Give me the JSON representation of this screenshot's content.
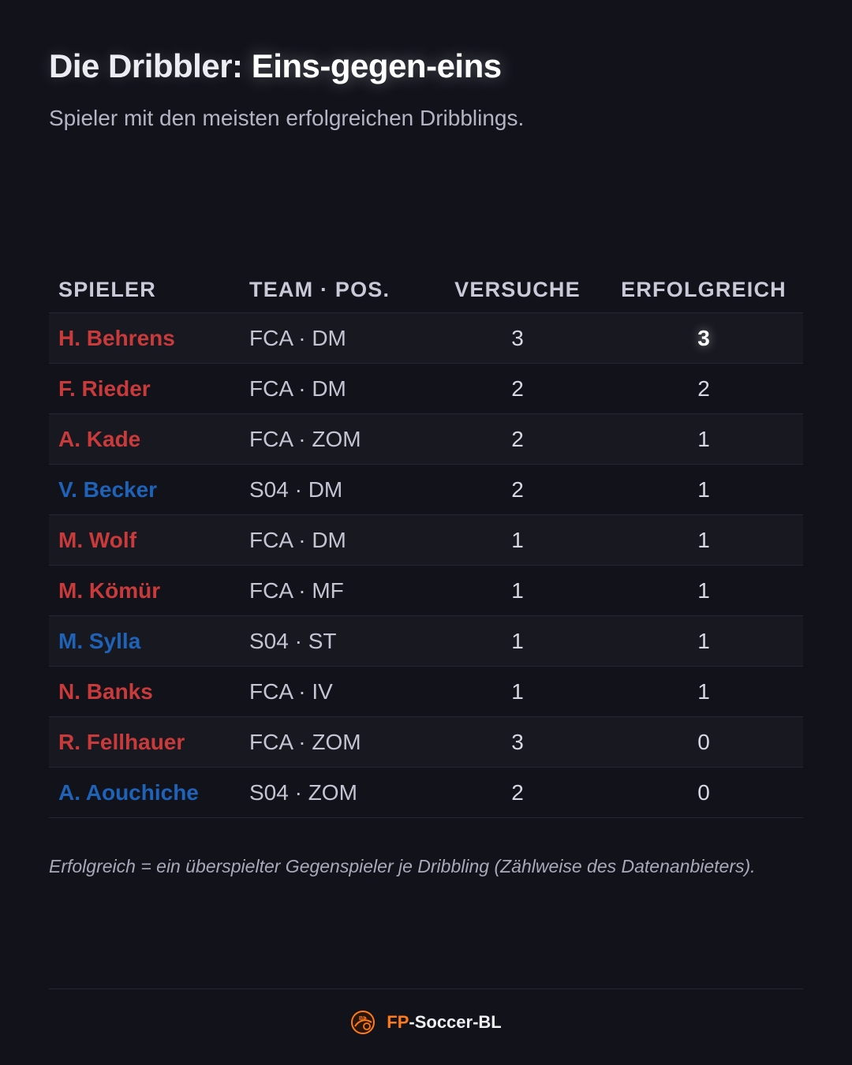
{
  "header": {
    "title_prefix": "Die Dribbler: ",
    "title_highlight": "Eins-gegen-eins",
    "subtitle": "Spieler mit den meisten erfolgreichen Dribblings."
  },
  "table": {
    "columns": [
      "SPIELER",
      "TEAM · POS.",
      "VERSUCHE",
      "ERFOLGREICH"
    ],
    "rows": [
      {
        "name": "H. Behrens",
        "team_pos": "FCA · DM",
        "versuche": "3",
        "erfolgreich": "3",
        "team": "FCA"
      },
      {
        "name": "F. Rieder",
        "team_pos": "FCA · DM",
        "versuche": "2",
        "erfolgreich": "2",
        "team": "FCA"
      },
      {
        "name": "A. Kade",
        "team_pos": "FCA · ZOM",
        "versuche": "2",
        "erfolgreich": "1",
        "team": "FCA"
      },
      {
        "name": "V. Becker",
        "team_pos": "S04 · DM",
        "versuche": "2",
        "erfolgreich": "1",
        "team": "S04"
      },
      {
        "name": "M. Wolf",
        "team_pos": "FCA · DM",
        "versuche": "1",
        "erfolgreich": "1",
        "team": "FCA"
      },
      {
        "name": "M. Kömür",
        "team_pos": "FCA · MF",
        "versuche": "1",
        "erfolgreich": "1",
        "team": "FCA"
      },
      {
        "name": "M. Sylla",
        "team_pos": "S04 · ST",
        "versuche": "1",
        "erfolgreich": "1",
        "team": "S04"
      },
      {
        "name": "N. Banks",
        "team_pos": "FCA · IV",
        "versuche": "1",
        "erfolgreich": "1",
        "team": "FCA"
      },
      {
        "name": "R. Fellhauer",
        "team_pos": "FCA · ZOM",
        "versuche": "3",
        "erfolgreich": "0",
        "team": "FCA"
      },
      {
        "name": "A. Aouchiche",
        "team_pos": "S04 · ZOM",
        "versuche": "2",
        "erfolgreich": "0",
        "team": "S04"
      }
    ]
  },
  "footnote": "Erfolgreich = ein überspielter Gegenspieler je Dribbling (Zählweise des Datenanbieters).",
  "brand": {
    "prefix": "FP",
    "suffix": "-Soccer-BL",
    "logo_text": "BL",
    "logo_icon": "football-logo-icon"
  },
  "colors": {
    "background": "#12121b",
    "fca": "#c93a3a",
    "s04": "#1e63b8",
    "brand_accent": "#ff7a1a"
  }
}
